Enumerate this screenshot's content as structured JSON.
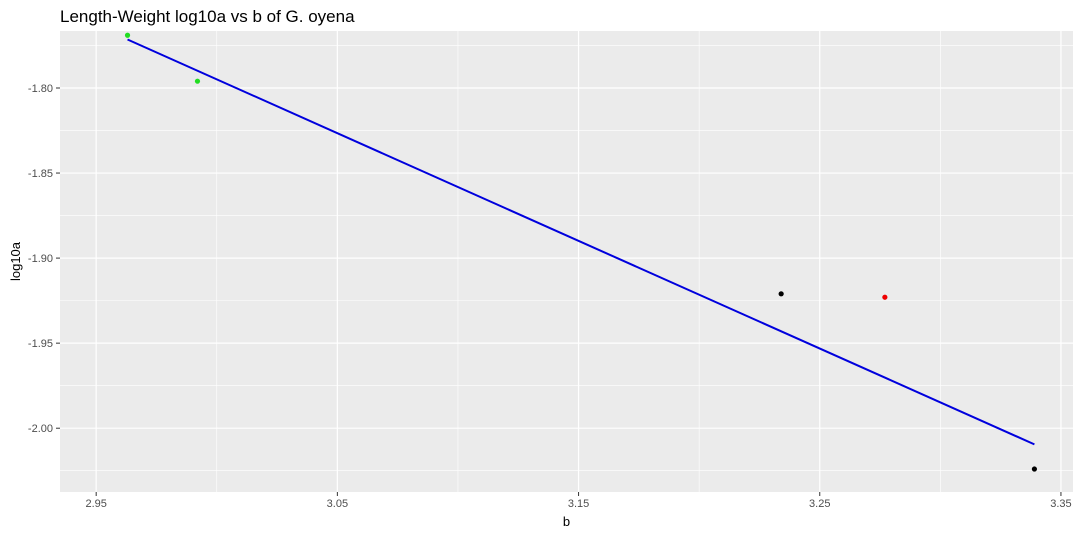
{
  "chart_data": {
    "type": "scatter",
    "title": "Length-Weight log10a vs b of G. oyena",
    "xlabel": "b",
    "ylabel": "log10a",
    "xlim": [
      2.935,
      3.355
    ],
    "ylim": [
      -2.0375,
      -1.7665
    ],
    "x_ticks": [
      "2.95",
      "3.05",
      "3.15",
      "3.25",
      "3.35"
    ],
    "y_ticks": [
      "-1.80",
      "-1.85",
      "-1.90",
      "-1.95",
      "-2.00"
    ],
    "grid": true,
    "points": [
      {
        "x": 2.963,
        "y": -1.769,
        "color": "#22dd22"
      },
      {
        "x": 2.992,
        "y": -1.796,
        "color": "#22dd22"
      },
      {
        "x": 3.234,
        "y": -1.921,
        "color": "#000000"
      },
      {
        "x": 3.277,
        "y": -1.923,
        "color": "#ee0000"
      },
      {
        "x": 3.339,
        "y": -2.024,
        "color": "#000000"
      }
    ],
    "fit_line": {
      "x": [
        2.963,
        3.339
      ],
      "y": [
        -1.7715,
        -2.0095
      ],
      "color": "#0000dd"
    }
  }
}
